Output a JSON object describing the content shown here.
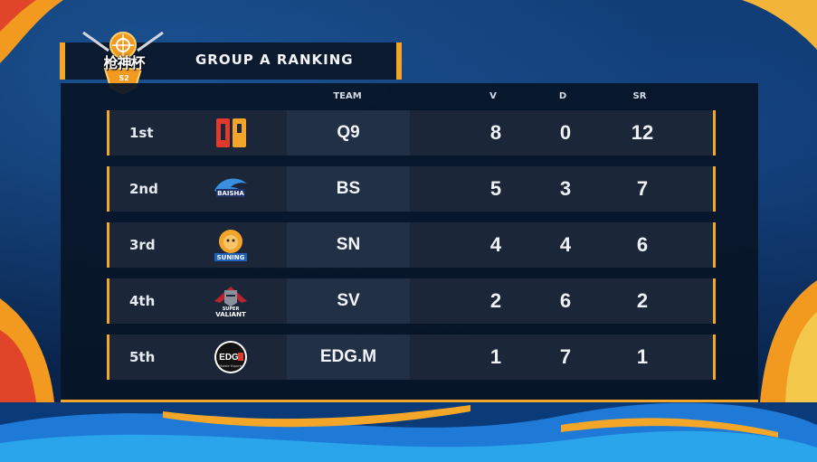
{
  "header": {
    "title": "GROUP A RANKING",
    "logo_text": "枪神杯",
    "logo_sub": "S2"
  },
  "columns": {
    "team": "TEAM",
    "v": "V",
    "d": "D",
    "sr": "SR"
  },
  "rows": [
    {
      "rank": "1st",
      "team": "Q9",
      "v": "8",
      "d": "0",
      "sr": "12",
      "logo": "q9-logo-icon"
    },
    {
      "rank": "2nd",
      "team": "BS",
      "v": "5",
      "d": "3",
      "sr": "7",
      "logo": "baisha-shark-logo-icon"
    },
    {
      "rank": "3rd",
      "team": "SN",
      "v": "4",
      "d": "4",
      "sr": "6",
      "logo": "suning-lion-logo-icon"
    },
    {
      "rank": "4th",
      "team": "SV",
      "v": "2",
      "d": "6",
      "sr": "2",
      "logo": "super-valiant-knight-logo-icon"
    },
    {
      "rank": "5th",
      "team": "EDG.M",
      "v": "1",
      "d": "7",
      "sr": "1",
      "logo": "edg-m-logo-icon"
    }
  ],
  "logo_labels": {
    "bs": "BAISHA",
    "sn": "SUNING",
    "sv_top": "SUPER",
    "sv_main": "VALIANT",
    "edg": "EDG",
    "edg_sub": "Mobile Esports"
  },
  "colors": {
    "accent": "#f4a628",
    "panel": "#08142a",
    "row": "#1b2738",
    "text": "#eef1f6"
  }
}
